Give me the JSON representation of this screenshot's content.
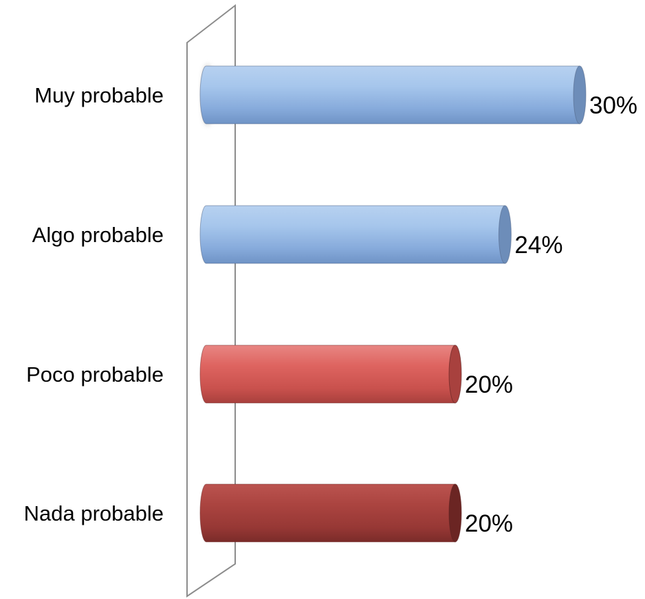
{
  "chart_data": {
    "type": "bar",
    "orientation": "horizontal",
    "style": "3d-cylinder",
    "categories": [
      "Muy probable",
      "Algo probable",
      "Poco probable",
      "Nada probable"
    ],
    "values": [
      30,
      24,
      20,
      20
    ],
    "value_labels": [
      "30%",
      "24%",
      "20%",
      "20%"
    ],
    "xlim": [
      0,
      30
    ],
    "bar_colors": [
      "#8db3e2",
      "#8db3e2",
      "#d9534f",
      "#a23a36"
    ],
    "grid": false,
    "legend": "none",
    "title": "",
    "xlabel": "",
    "ylabel": ""
  }
}
